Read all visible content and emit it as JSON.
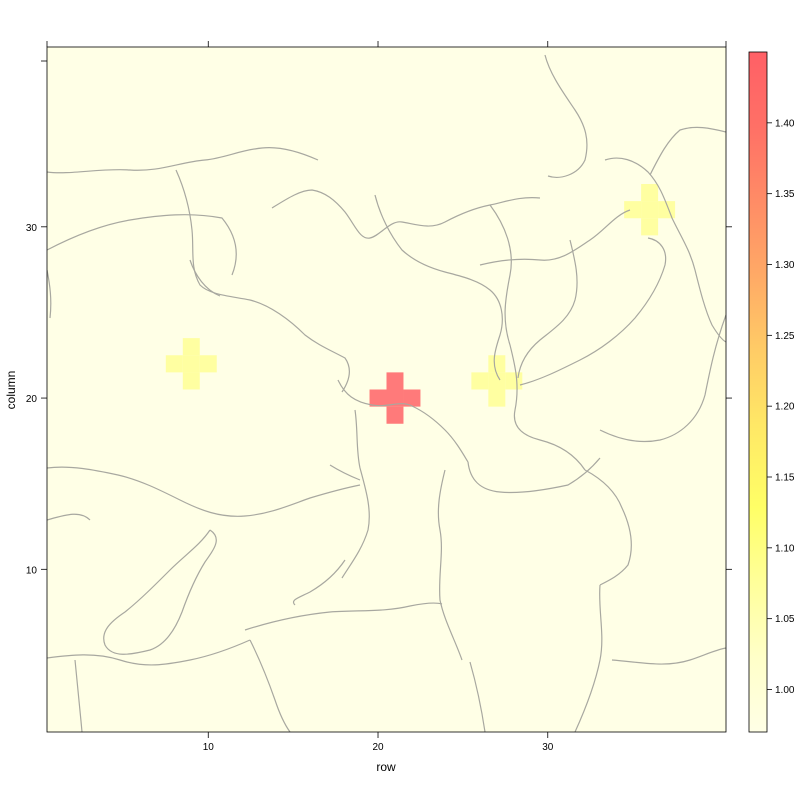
{
  "chart_data": {
    "type": "heatmap",
    "xlabel": "row",
    "ylabel": "column",
    "xlim": [
      0.5,
      40.5
    ],
    "ylim": [
      0.5,
      40.5
    ],
    "x_ticks": [
      10,
      20,
      30
    ],
    "y_ticks": [
      10,
      20,
      30
    ],
    "background_value": 1.0,
    "cells": [
      {
        "x": 21,
        "y": 20,
        "value": 1.45
      },
      {
        "x": 9,
        "y": 22,
        "value": 1.1
      },
      {
        "x": 27,
        "y": 21,
        "value": 1.1
      },
      {
        "x": 36,
        "y": 31,
        "value": 1.1
      }
    ],
    "colorbar": {
      "min": 0.97,
      "max": 1.45,
      "ticks": [
        "1.00",
        "1.05",
        "1.10",
        "1.15",
        "1.20",
        "1.25",
        "1.30",
        "1.35",
        "1.40"
      ],
      "colors": [
        "#ffffe6",
        "#ffffc4",
        "#ffff94",
        "#ffff66",
        "#ffef66",
        "#ffd466",
        "#ffb366",
        "#ff9266",
        "#ff7366",
        "#ff6366"
      ]
    }
  }
}
